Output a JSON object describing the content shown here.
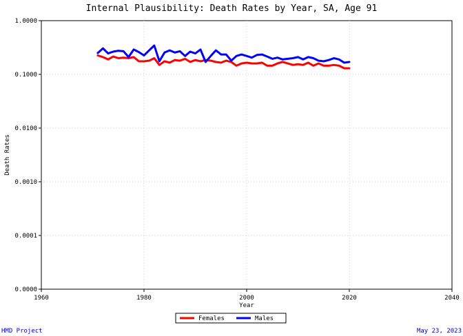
{
  "chart_data": {
    "type": "line",
    "title": "Internal Plausibility: Death Rates by Year, SA, Age 91",
    "xlabel": "Year",
    "ylabel": "Death Rates",
    "xlim": [
      1960,
      2040
    ],
    "ylim": [
      1e-05,
      1.0
    ],
    "yscale": "log",
    "grid": true,
    "legend_position": "bottom-center",
    "x_ticks": [
      1960,
      1980,
      2000,
      2020,
      2040
    ],
    "x_tick_labels": [
      "1960",
      "1980",
      "2000",
      "2020",
      "2040"
    ],
    "y_ticks": [
      1.0,
      0.1,
      0.01,
      0.001,
      0.0001,
      1e-05
    ],
    "y_tick_labels": [
      "1.0000",
      "0.1000",
      "0.0100",
      "0.0010",
      "0.0001",
      "0.0000"
    ],
    "x": [
      1971,
      1972,
      1973,
      1974,
      1975,
      1976,
      1977,
      1978,
      1979,
      1980,
      1981,
      1982,
      1983,
      1984,
      1985,
      1986,
      1987,
      1988,
      1989,
      1990,
      1991,
      1992,
      1993,
      1994,
      1995,
      1996,
      1997,
      1998,
      1999,
      2000,
      2001,
      2002,
      2003,
      2004,
      2005,
      2006,
      2007,
      2008,
      2009,
      2010,
      2011,
      2012,
      2013,
      2014,
      2015,
      2016,
      2017,
      2018,
      2019,
      2020
    ],
    "series": [
      {
        "name": "Females",
        "color": "#ff0000",
        "values": [
          0.225,
          0.21,
          0.19,
          0.215,
          0.2,
          0.205,
          0.2,
          0.21,
          0.175,
          0.175,
          0.18,
          0.2,
          0.15,
          0.175,
          0.165,
          0.185,
          0.18,
          0.195,
          0.17,
          0.185,
          0.175,
          0.185,
          0.18,
          0.17,
          0.165,
          0.18,
          0.17,
          0.145,
          0.16,
          0.165,
          0.16,
          0.16,
          0.165,
          0.145,
          0.145,
          0.16,
          0.17,
          0.16,
          0.15,
          0.155,
          0.15,
          0.165,
          0.145,
          0.16,
          0.145,
          0.145,
          0.15,
          0.145,
          0.13,
          0.13
        ]
      },
      {
        "name": "Males",
        "color": "#0000ff",
        "values": [
          0.25,
          0.305,
          0.245,
          0.265,
          0.275,
          0.27,
          0.21,
          0.29,
          0.26,
          0.225,
          0.28,
          0.345,
          0.175,
          0.255,
          0.28,
          0.255,
          0.27,
          0.22,
          0.265,
          0.245,
          0.29,
          0.17,
          0.22,
          0.28,
          0.235,
          0.235,
          0.18,
          0.22,
          0.235,
          0.22,
          0.205,
          0.23,
          0.235,
          0.215,
          0.195,
          0.205,
          0.19,
          0.195,
          0.2,
          0.21,
          0.19,
          0.21,
          0.2,
          0.18,
          0.175,
          0.185,
          0.2,
          0.19,
          0.165,
          0.17
        ]
      }
    ]
  },
  "footer": {
    "left": "HMD Project",
    "right": "May 23, 2023"
  }
}
